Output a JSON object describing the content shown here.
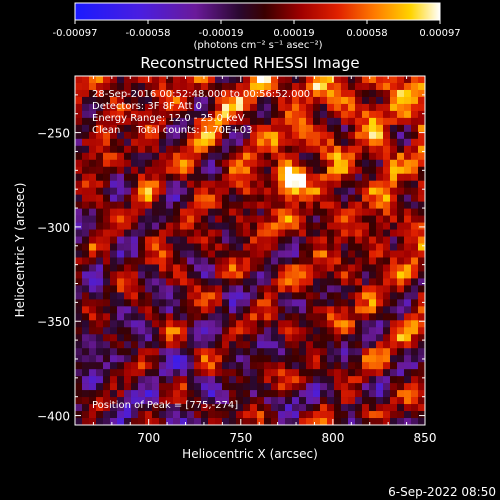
{
  "chart_data": {
    "type": "heatmap",
    "title": "Reconstructed RHESSI Image",
    "xlabel": "Heliocentric X (arcsec)",
    "ylabel": "Heliocentric Y (arcsec)",
    "xlim": [
      660,
      850
    ],
    "ylim": [
      -405,
      -220
    ],
    "x_ticks": [
      700,
      750,
      800,
      850
    ],
    "y_ticks": [
      -400,
      -350,
      -300,
      -250
    ],
    "x_tick_labels": [
      "700",
      "750",
      "800",
      "850"
    ],
    "y_tick_labels": [
      "−400",
      "−350",
      "−300",
      "−250"
    ],
    "colorbar": {
      "range": [
        -0.00097,
        0.00097
      ],
      "tick_labels": [
        "-0.00097",
        "-0.00058",
        "-0.00019",
        "0.00019",
        "0.00058",
        "0.00097"
      ],
      "unit_label": "(photons cm⁻² s⁻¹ asec⁻²)",
      "colormap": "blue-purple-red-yellow-white"
    },
    "annotations": {
      "time_range": "28-Sep-2016 00:52:48.000 to 00:56:52.000",
      "detectors": "Detectors: 3F 8F  Att 0",
      "energy_range": "Energy Range: 12.0 - 25.0 keV",
      "method_counts": "Clean     Total counts: 1.70E+03",
      "peak_position": "Position of Peak = [775,-274]"
    },
    "peak": {
      "x": 775,
      "y": -274
    }
  },
  "footer": {
    "timestamp": "6-Sep-2022 08:50"
  }
}
